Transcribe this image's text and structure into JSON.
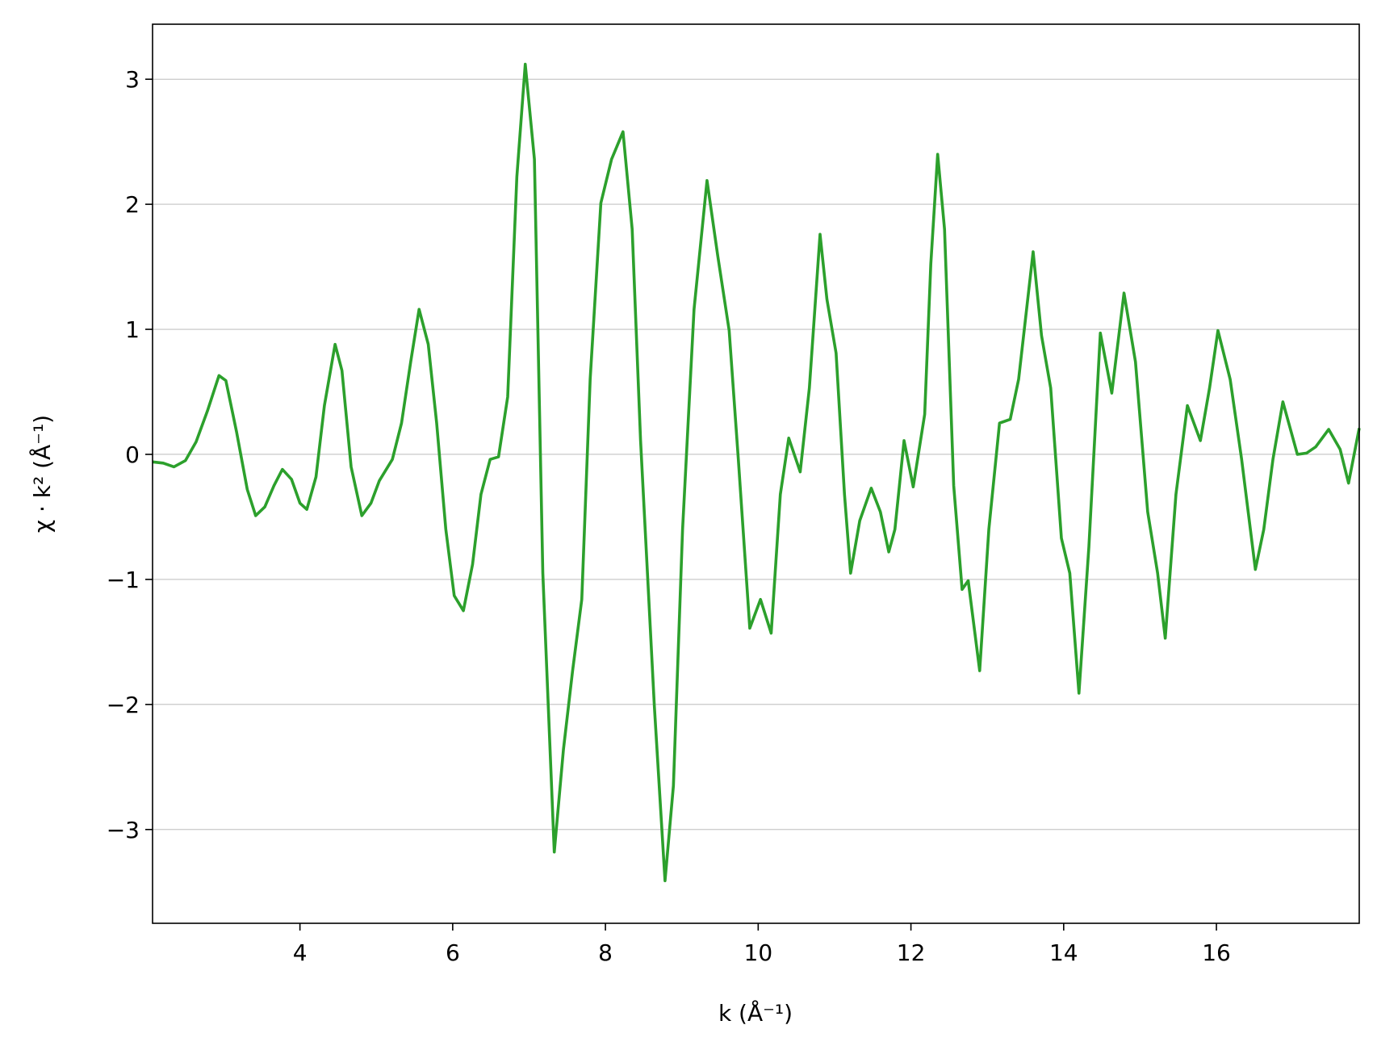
{
  "chart_data": {
    "type": "line",
    "xlabel": "k (Å⁻¹)",
    "ylabel": "χ · k² (Å⁻¹)",
    "color": "#2ca02c",
    "grid": "y",
    "xlim": [
      2.07,
      17.87
    ],
    "ylim": [
      -3.75,
      3.44
    ],
    "xticks": [
      4,
      6,
      8,
      10,
      12,
      14,
      16
    ],
    "yticks": [
      {
        "value": -3,
        "label": "−3"
      },
      {
        "value": -2,
        "label": "−2"
      },
      {
        "value": -1,
        "label": "−1"
      },
      0,
      1,
      2,
      3
    ],
    "x": [
      2.07,
      2.21,
      2.35,
      2.5,
      2.64,
      2.79,
      2.94,
      3.03,
      3.17,
      3.31,
      3.42,
      3.54,
      3.66,
      3.77,
      3.89,
      4.0,
      4.09,
      4.21,
      4.32,
      4.46,
      4.55,
      4.67,
      4.81,
      4.93,
      5.04,
      5.21,
      5.33,
      5.45,
      5.56,
      5.68,
      5.79,
      5.91,
      6.02,
      6.14,
      6.26,
      6.37,
      6.49,
      6.6,
      6.72,
      6.84,
      6.95,
      7.07,
      7.18,
      7.33,
      7.45,
      7.57,
      7.69,
      7.8,
      7.94,
      8.08,
      8.23,
      8.35,
      8.46,
      8.64,
      8.78,
      8.89,
      9.01,
      9.16,
      9.33,
      9.47,
      9.62,
      9.74,
      9.89,
      10.03,
      10.17,
      10.29,
      10.4,
      10.55,
      10.67,
      10.81,
      10.9,
      11.02,
      11.13,
      11.21,
      11.33,
      11.48,
      11.6,
      11.71,
      11.79,
      11.91,
      12.03,
      12.18,
      12.26,
      12.35,
      12.44,
      12.56,
      12.67,
      12.75,
      12.9,
      13.02,
      13.16,
      13.3,
      13.41,
      13.6,
      13.71,
      13.83,
      13.97,
      14.08,
      14.2,
      14.33,
      14.48,
      14.63,
      14.79,
      14.94,
      15.1,
      15.23,
      15.33,
      15.47,
      15.62,
      15.79,
      15.91,
      16.02,
      16.18,
      16.33,
      16.51,
      16.62,
      16.74,
      16.87,
      17.06,
      17.18,
      17.3,
      17.47,
      17.62,
      17.73,
      17.87
    ],
    "values": [
      -0.06,
      -0.07,
      -0.1,
      -0.05,
      0.1,
      0.35,
      0.63,
      0.59,
      0.18,
      -0.28,
      -0.49,
      -0.42,
      -0.25,
      -0.12,
      -0.2,
      -0.39,
      -0.44,
      -0.18,
      0.39,
      0.88,
      0.67,
      -0.1,
      -0.49,
      -0.39,
      -0.21,
      -0.04,
      0.25,
      0.74,
      1.16,
      0.88,
      0.25,
      -0.6,
      -1.13,
      -1.25,
      -0.88,
      -0.32,
      -0.04,
      -0.02,
      0.46,
      2.22,
      3.12,
      2.36,
      -0.95,
      -3.18,
      -2.36,
      -1.73,
      -1.16,
      0.6,
      2.01,
      2.36,
      2.58,
      1.8,
      0.11,
      -2.01,
      -3.41,
      -2.65,
      -0.6,
      1.16,
      2.19,
      1.59,
      0.99,
      -0.04,
      -1.39,
      -1.16,
      -1.43,
      -0.32,
      0.13,
      -0.14,
      0.53,
      1.76,
      1.24,
      0.81,
      -0.32,
      -0.95,
      -0.53,
      -0.27,
      -0.46,
      -0.78,
      -0.6,
      0.11,
      -0.26,
      0.32,
      1.52,
      2.4,
      1.8,
      -0.25,
      -1.08,
      -1.01,
      -1.73,
      -0.6,
      0.25,
      0.28,
      0.6,
      1.62,
      0.95,
      0.53,
      -0.67,
      -0.95,
      -1.91,
      -0.74,
      0.97,
      0.49,
      1.29,
      0.74,
      -0.46,
      -0.95,
      -1.47,
      -0.32,
      0.39,
      0.11,
      0.53,
      0.99,
      0.6,
      -0.04,
      -0.92,
      -0.6,
      -0.04,
      0.42,
      0.0,
      0.01,
      0.06,
      0.2,
      0.04,
      -0.23,
      0.21
    ]
  }
}
